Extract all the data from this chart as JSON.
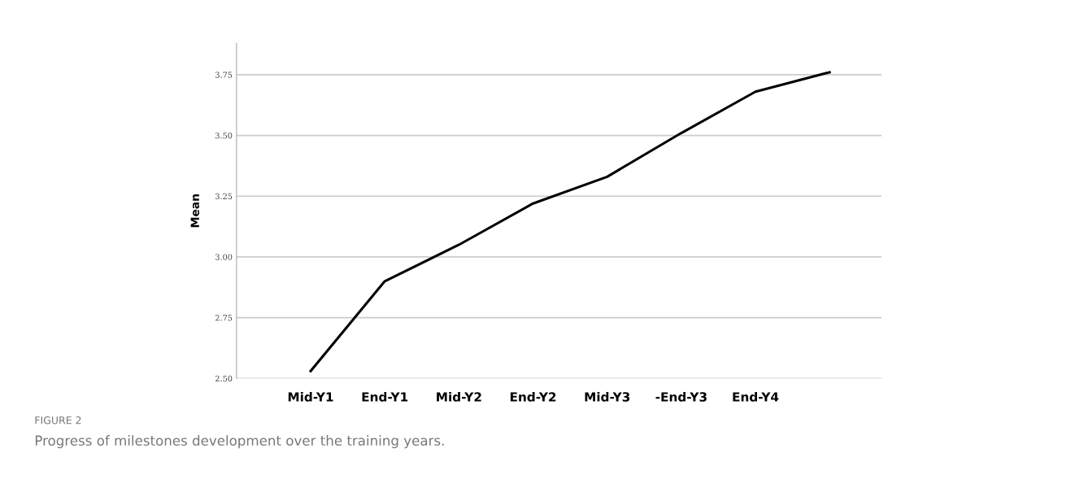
{
  "chart_data": {
    "type": "line",
    "ylabel": "Mean",
    "categories": [
      "Mid-Y1",
      "End-Y1",
      "Mid-Y2",
      "End-Y2",
      "Mid-Y3",
      "-End-Y3",
      "End-Y4",
      null
    ],
    "series": [
      {
        "color": "#000000",
        "values": [
          2.53,
          2.9,
          3.05,
          3.22,
          3.33,
          3.51,
          3.68,
          3.76
        ]
      }
    ],
    "ylim": [
      2.5,
      3.88
    ],
    "yticks": [
      {
        "value": 2.5,
        "label": "2.50"
      },
      {
        "value": 2.75,
        "label": "2.75"
      },
      {
        "value": 3.0,
        "label": "3.00"
      },
      {
        "value": 3.25,
        "label": "3.25"
      },
      {
        "value": 3.5,
        "label": "3.50"
      },
      {
        "value": 3.75,
        "label": "3.75"
      }
    ],
    "grid": "y",
    "marker": "none",
    "line_style": "solid",
    "annotations": [
      "FIGURE 2",
      "Progress of milestones development over the training years."
    ]
  }
}
